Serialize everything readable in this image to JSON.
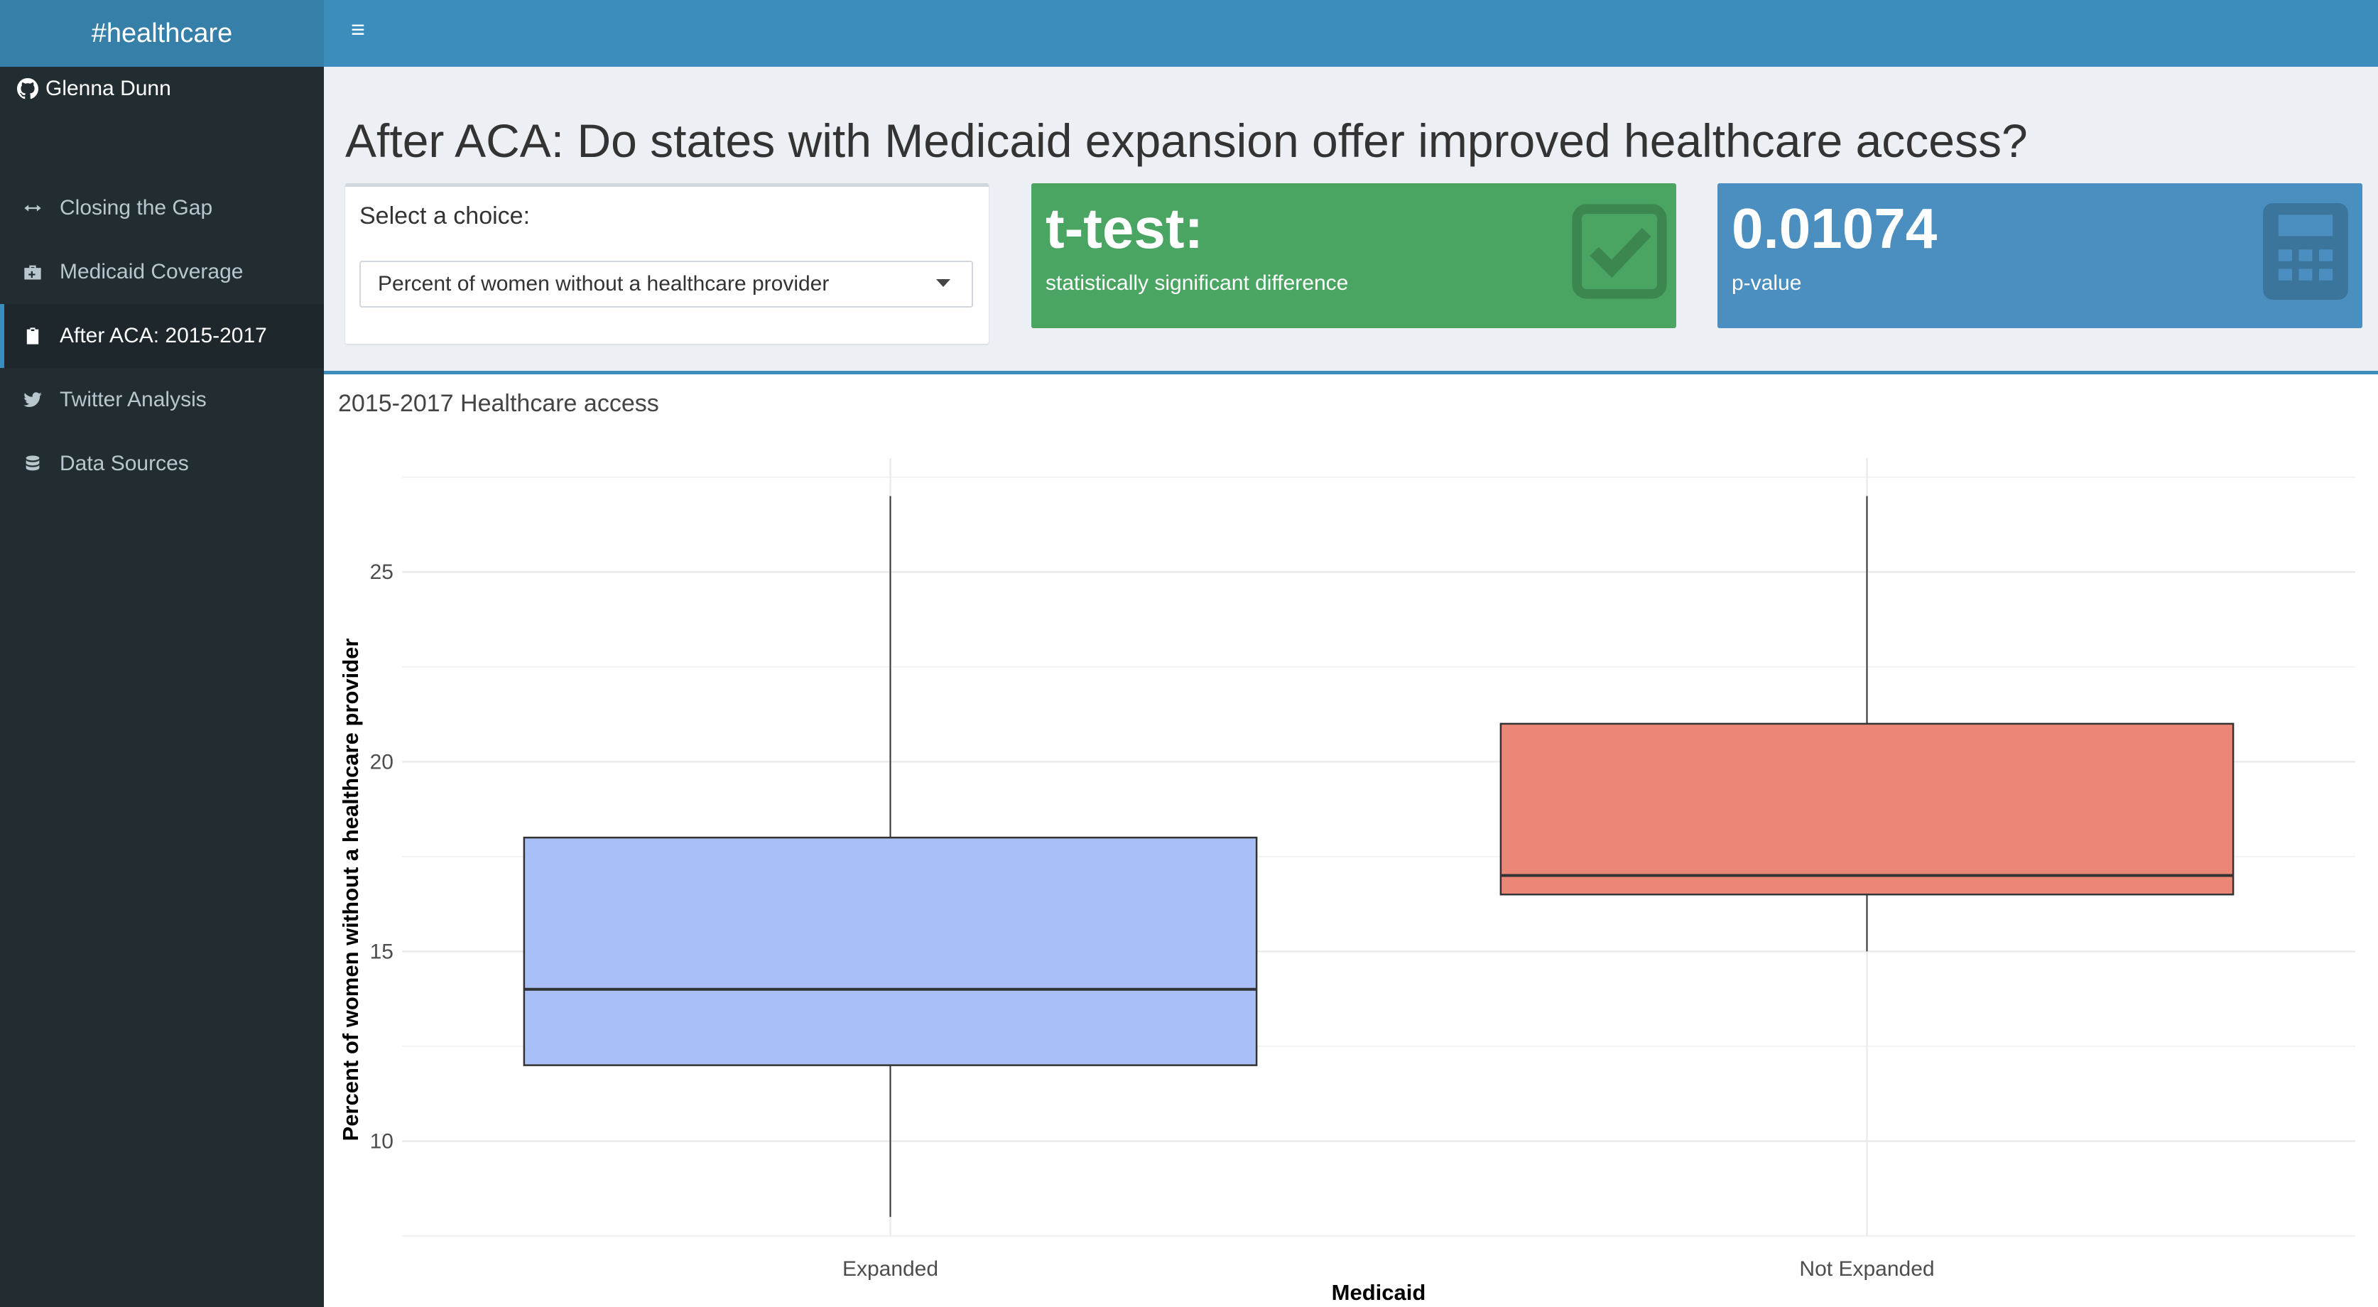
{
  "header": {
    "logo_text": "#healthcare",
    "menu_icon": "hamburger-icon"
  },
  "sidebar": {
    "user_name": "Glenna Dunn",
    "items": [
      {
        "label": "Closing the Gap",
        "icon": "arrows-horizontal-icon"
      },
      {
        "label": "Medicaid Coverage",
        "icon": "medkit-icon"
      },
      {
        "label": "After ACA: 2015-2017",
        "icon": "clipboard-icon",
        "active": true
      },
      {
        "label": "Twitter Analysis",
        "icon": "twitter-icon"
      },
      {
        "label": "Data Sources",
        "icon": "database-icon"
      }
    ]
  },
  "page": {
    "title": "After ACA: Do states with Medicaid expansion offer improved healthcare access?"
  },
  "selector": {
    "label": "Select a choice:",
    "value": "Percent of women without a healthcare provider"
  },
  "ttest_box": {
    "value": "t-test:",
    "subtitle": "statistically significant difference",
    "color": "#4aa562",
    "icon": "check-square-icon"
  },
  "pvalue_box": {
    "value": "0.01074",
    "subtitle": "p-value",
    "color": "#4a8fbf",
    "icon": "calculator-icon"
  },
  "chart_box": {
    "title": "2015-2017 Healthcare access"
  },
  "chart_data": {
    "type": "boxplot",
    "categories": [
      "Expanded",
      "Not Expanded"
    ],
    "xlabel": "Medicaid",
    "ylabel": "Percent of women without a healthcare provider",
    "ylim": [
      7.5,
      28
    ],
    "yticks": [
      10,
      15,
      20,
      25
    ],
    "grid": true,
    "boxes": [
      {
        "category": "Expanded",
        "min": 8,
        "q1": 12,
        "median": 14,
        "q3": 18,
        "max": 27,
        "color": "#a9bff8"
      },
      {
        "category": "Not Expanded",
        "min": 15,
        "q1": 16.5,
        "median": 17,
        "q3": 21,
        "max": 27,
        "color": "#ec8677"
      }
    ]
  }
}
